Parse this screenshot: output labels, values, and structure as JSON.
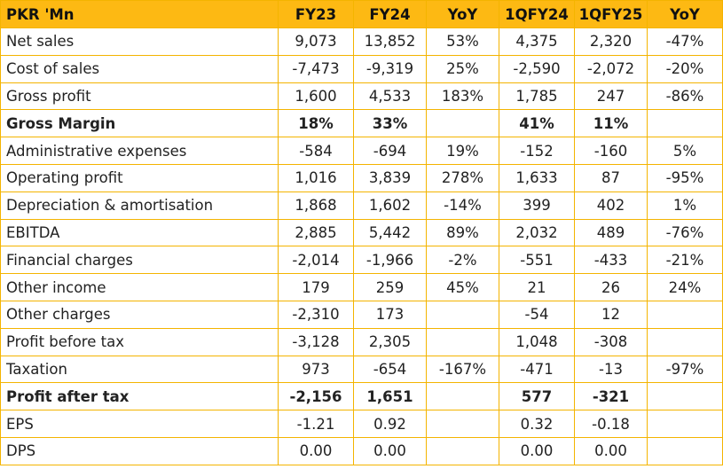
{
  "table": {
    "headers": [
      "PKR 'Mn",
      "FY23",
      "FY24",
      "YoY",
      "1QFY24",
      "1QFY25",
      "YoY"
    ],
    "rows": [
      {
        "label": "Net sales",
        "bold": false,
        "cells": [
          "9,073",
          "13,852",
          "53%",
          "4,375",
          "2,320",
          "-47%"
        ]
      },
      {
        "label": "Cost of sales",
        "bold": false,
        "cells": [
          "-7,473",
          "-9,319",
          "25%",
          "-2,590",
          "-2,072",
          "-20%"
        ]
      },
      {
        "label": "Gross profit",
        "bold": false,
        "cells": [
          "1,600",
          "4,533",
          "183%",
          "1,785",
          "247",
          "-86%"
        ]
      },
      {
        "label": "Gross Margin",
        "bold": true,
        "cells": [
          "18%",
          "33%",
          "",
          "41%",
          "11%",
          ""
        ]
      },
      {
        "label": "Administrative expenses",
        "bold": false,
        "cells": [
          "-584",
          "-694",
          "19%",
          "-152",
          "-160",
          "5%"
        ]
      },
      {
        "label": "Operating profit",
        "bold": false,
        "cells": [
          "1,016",
          "3,839",
          "278%",
          "1,633",
          "87",
          "-95%"
        ]
      },
      {
        "label": "Depreciation & amortisation",
        "bold": false,
        "cells": [
          "1,868",
          "1,602",
          "-14%",
          "399",
          "402",
          "1%"
        ]
      },
      {
        "label": "EBITDA",
        "bold": false,
        "cells": [
          "2,885",
          "5,442",
          "89%",
          "2,032",
          "489",
          "-76%"
        ]
      },
      {
        "label": "Financial charges",
        "bold": false,
        "cells": [
          "-2,014",
          "-1,966",
          "-2%",
          "-551",
          "-433",
          "-21%"
        ]
      },
      {
        "label": "Other income",
        "bold": false,
        "cells": [
          "179",
          "259",
          "45%",
          "21",
          "26",
          "24%"
        ]
      },
      {
        "label": "Other charges",
        "bold": false,
        "cells": [
          "-2,310",
          "173",
          "",
          "-54",
          "12",
          ""
        ]
      },
      {
        "label": "Profit before tax",
        "bold": false,
        "cells": [
          "-3,128",
          "2,305",
          "",
          "1,048",
          "-308",
          ""
        ]
      },
      {
        "label": "Taxation",
        "bold": false,
        "cells": [
          "973",
          "-654",
          "-167%",
          "-471",
          "-13",
          "-97%"
        ]
      },
      {
        "label": "Profit after tax",
        "bold": true,
        "cells": [
          "-2,156",
          "1,651",
          "",
          "577",
          "-321",
          ""
        ]
      },
      {
        "label": "EPS",
        "bold": false,
        "cells": [
          "-1.21",
          "0.92",
          "",
          "0.32",
          "-0.18",
          ""
        ]
      },
      {
        "label": "DPS",
        "bold": false,
        "cells": [
          "0.00",
          "0.00",
          "",
          "0.00",
          "0.00",
          ""
        ]
      }
    ]
  },
  "colors": {
    "header_bg": "#fdb913",
    "border": "#f4b400"
  }
}
